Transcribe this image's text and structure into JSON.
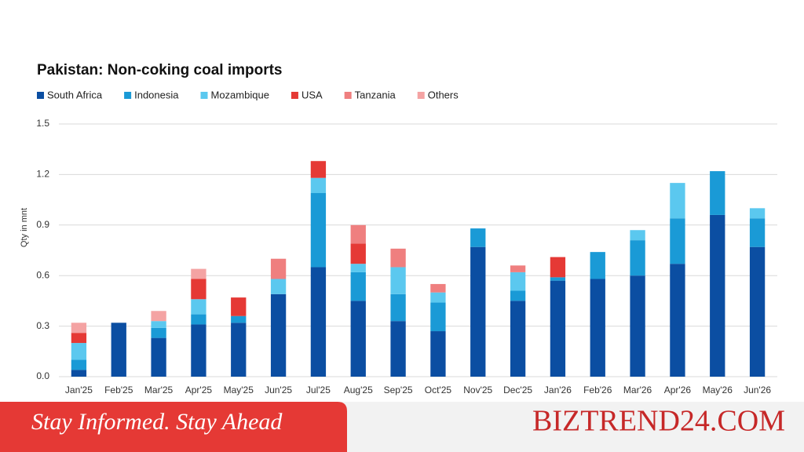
{
  "chart_data": {
    "type": "stacked-bar",
    "title": "Pakistan: Non-coking coal imports",
    "y_label": "Qty in mnt",
    "categories": [
      "Jan'25",
      "Feb'25",
      "Mar'25",
      "Apr'25",
      "May'25",
      "Jun'25",
      "Jul'25",
      "Aug'25",
      "Sep'25",
      "Oct'25",
      "Nov'25",
      "Dec'25",
      "Jan'26",
      "Feb'26",
      "Mar'26",
      "Apr'26",
      "May'26",
      "Jun'26"
    ],
    "series": [
      {
        "name": "South Africa",
        "color": "#0b4ea2",
        "values": [
          0.04,
          0.32,
          0.23,
          0.31,
          0.32,
          0.49,
          0.65,
          0.45,
          0.33,
          0.27,
          0.77,
          0.45,
          0.57,
          0.58,
          0.6,
          0.67,
          0.96,
          0.77
        ]
      },
      {
        "name": "Indonesia",
        "color": "#1a9ad6",
        "values": [
          0.06,
          0,
          0.06,
          0.06,
          0.04,
          0,
          0.44,
          0.17,
          0.16,
          0.17,
          0.11,
          0.06,
          0.02,
          0.16,
          0.21,
          0.27,
          0.26,
          0.17
        ]
      },
      {
        "name": "Mozambique",
        "color": "#5bc8ef",
        "values": [
          0.1,
          0,
          0.04,
          0.09,
          0,
          0.09,
          0.09,
          0.05,
          0.16,
          0.06,
          0,
          0.11,
          0,
          0,
          0.06,
          0.21,
          0,
          0.06
        ]
      },
      {
        "name": "USA",
        "color": "#e53935",
        "values": [
          0.06,
          0,
          0,
          0.12,
          0.11,
          0,
          0.1,
          0.12,
          0,
          0,
          0,
          0,
          0.12,
          0,
          0,
          0,
          0,
          0
        ]
      },
      {
        "name": "Tanzania",
        "color": "#ef7f7f",
        "values": [
          0,
          0,
          0,
          0,
          0,
          0.12,
          0,
          0.11,
          0.11,
          0.05,
          0,
          0.04,
          0,
          0,
          0,
          0,
          0,
          0
        ]
      },
      {
        "name": "Others",
        "color": "#f4a3a3",
        "values": [
          0.06,
          0,
          0.06,
          0.06,
          0,
          0,
          0,
          0,
          0,
          0,
          0,
          0,
          0,
          0,
          0,
          0,
          0,
          0
        ]
      }
    ],
    "ylim": [
      0,
      1.5
    ],
    "yticks": [
      {
        "value": 0,
        "label": "0.0"
      },
      0.3,
      0.6,
      0.9,
      1.2,
      1.5
    ],
    "grid": true
  },
  "banner": {
    "tagline": "Stay Informed. Stay Ahead",
    "brand": "BIZTREND24.COM"
  }
}
